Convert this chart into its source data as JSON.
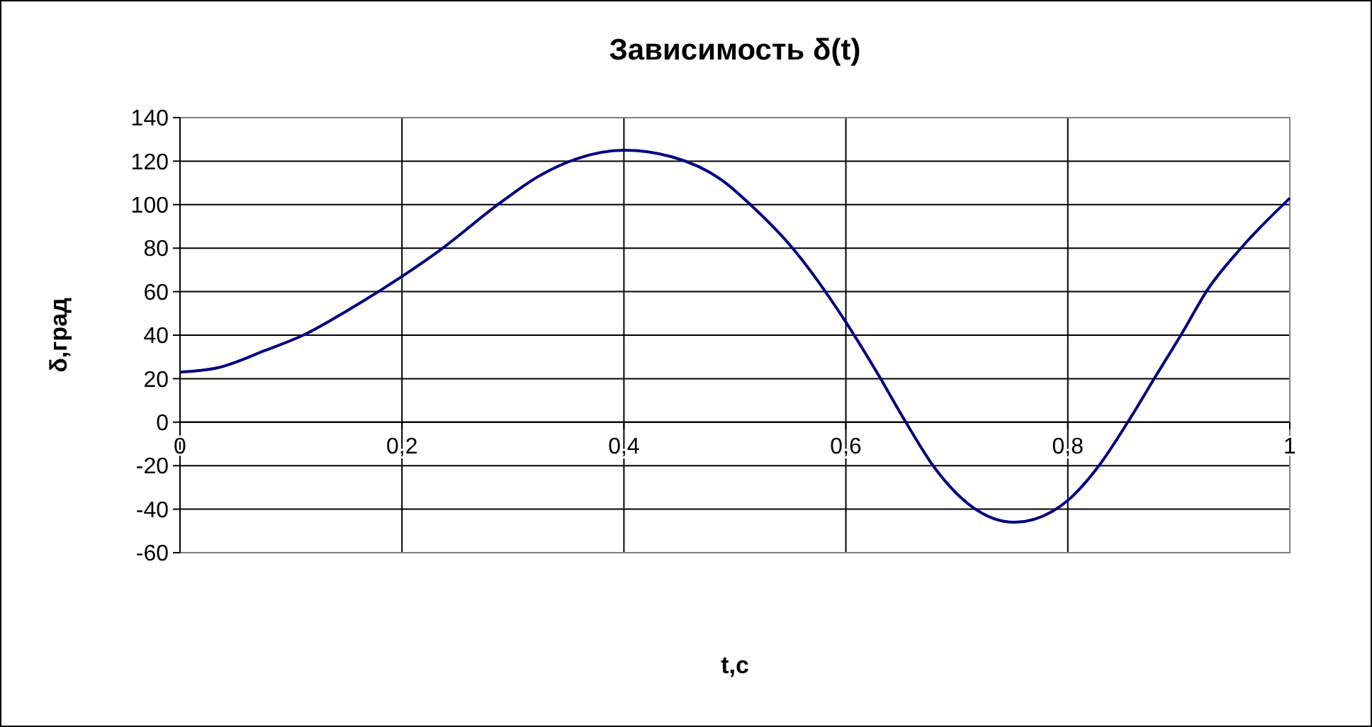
{
  "chart_data": {
    "type": "line",
    "title": "Зависимость δ(t)",
    "xlabel": "t,c",
    "ylabel": "δ,град",
    "xlim": [
      0,
      1
    ],
    "xticks": [
      0,
      {
        "value": 0.2,
        "label": "0,2"
      },
      {
        "value": 0.4,
        "label": "0,4"
      },
      {
        "value": 0.6,
        "label": "0,6"
      },
      {
        "value": 0.8,
        "label": "0,8"
      },
      1
    ],
    "ylim": [
      -60,
      140
    ],
    "yticks": [
      -60,
      -40,
      -20,
      0,
      20,
      40,
      60,
      80,
      100,
      120,
      140
    ],
    "grid": true,
    "marker": "none",
    "line_style": "solid",
    "series": [
      {
        "color": "#000080",
        "x": [
          0,
          0.034,
          0.077,
          0.111,
          0.153,
          0.2,
          0.234,
          0.289,
          0.323,
          0.357,
          0.4,
          0.443,
          0.489,
          0.514,
          0.552,
          0.6,
          0.629,
          0.654,
          0.68,
          0.714,
          0.752,
          0.786,
          0.8,
          0.828,
          0.854,
          0.879,
          0.903,
          0.926,
          0.956,
          1
        ],
        "values": [
          23,
          25,
          33,
          40,
          52,
          67,
          79,
          101,
          113,
          121,
          125,
          122,
          111,
          100,
          80,
          46,
          22,
          0,
          -21,
          -39,
          -46,
          -41,
          -36,
          -20,
          0,
          21,
          41,
          61,
          80,
          103
        ]
      }
    ]
  }
}
